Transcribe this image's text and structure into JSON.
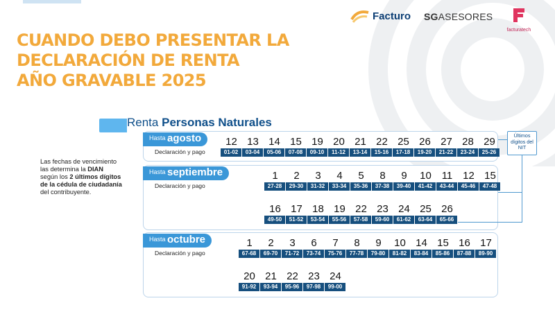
{
  "brand": {
    "facturo": "Facturo",
    "sgs_prefix": "SG",
    "sgs_name": "ASESORES",
    "facturatech": "facturatech"
  },
  "title_lines": [
    "CUANDO DEBO PRESENTAR LA",
    "DECLARACIÓN DE RENTA",
    "AÑO GRAVABLE 2025"
  ],
  "section": {
    "prefix": "Renta",
    "bold": "Personas Naturales"
  },
  "intro": {
    "p1": "Las fechas de vencimiento las determina la",
    "dian": "DIAN",
    "p2": "según los",
    "digits": "2 últimos dígitos de la cédula de ciudadanía",
    "p3": "del contribuyente."
  },
  "nit_note": "Últimos dígitos del NIT",
  "colors": {
    "title": "#f2a93b",
    "tag": "#3a97d8",
    "code_bg": "#164f7e",
    "heading": "#0f4f8a"
  },
  "months": [
    {
      "hasta": "Hasta",
      "name": "agosto",
      "decl": "Declaración y pago",
      "rows": [
        [
          {
            "d": "12",
            "n": "01-02"
          },
          {
            "d": "13",
            "n": "03-04"
          },
          {
            "d": "14",
            "n": "05-06"
          },
          {
            "d": "15",
            "n": "07-08"
          },
          {
            "d": "19",
            "n": "09-10"
          },
          {
            "d": "20",
            "n": "11-12"
          },
          {
            "d": "21",
            "n": "13-14"
          },
          {
            "d": "22",
            "n": "15-16"
          },
          {
            "d": "25",
            "n": "17-18"
          },
          {
            "d": "26",
            "n": "19-20"
          },
          {
            "d": "27",
            "n": "21-22"
          },
          {
            "d": "28",
            "n": "23-24"
          },
          {
            "d": "29",
            "n": "25-26"
          }
        ]
      ]
    },
    {
      "hasta": "Hasta",
      "name": "septiembre",
      "decl": "Declaración y pago",
      "rows": [
        [
          {
            "d": "1",
            "n": "27-28"
          },
          {
            "d": "2",
            "n": "29-30"
          },
          {
            "d": "3",
            "n": "31-32"
          },
          {
            "d": "4",
            "n": "33-34"
          },
          {
            "d": "5",
            "n": "35-36"
          },
          {
            "d": "8",
            "n": "37-38"
          },
          {
            "d": "9",
            "n": "39-40"
          },
          {
            "d": "10",
            "n": "41-42"
          },
          {
            "d": "11",
            "n": "43-44"
          },
          {
            "d": "12",
            "n": "45-46"
          },
          {
            "d": "15",
            "n": "47-48"
          }
        ],
        [
          {
            "d": "16",
            "n": "49-50"
          },
          {
            "d": "17",
            "n": "51-52"
          },
          {
            "d": "18",
            "n": "53-54"
          },
          {
            "d": "19",
            "n": "55-56"
          },
          {
            "d": "22",
            "n": "57-58"
          },
          {
            "d": "23",
            "n": "59-60"
          },
          {
            "d": "24",
            "n": "61-62"
          },
          {
            "d": "25",
            "n": "63-64"
          },
          {
            "d": "26",
            "n": "65-66"
          }
        ]
      ]
    },
    {
      "hasta": "Hasta",
      "name": "octubre",
      "decl": "Declaración y pago",
      "rows": [
        [
          {
            "d": "1",
            "n": "67-68"
          },
          {
            "d": "2",
            "n": "69-70"
          },
          {
            "d": "3",
            "n": "71-72"
          },
          {
            "d": "6",
            "n": "73-74"
          },
          {
            "d": "7",
            "n": "75-76"
          },
          {
            "d": "8",
            "n": "77-78"
          },
          {
            "d": "9",
            "n": "79-80"
          },
          {
            "d": "10",
            "n": "81-82"
          },
          {
            "d": "14",
            "n": "83-84"
          },
          {
            "d": "15",
            "n": "85-86"
          },
          {
            "d": "16",
            "n": "87-88"
          },
          {
            "d": "17",
            "n": "89-90"
          }
        ],
        [
          {
            "d": "20",
            "n": "91-92"
          },
          {
            "d": "21",
            "n": "93-94"
          },
          {
            "d": "22",
            "n": "95-96"
          },
          {
            "d": "23",
            "n": "97-98"
          },
          {
            "d": "24",
            "n": "99-00"
          }
        ]
      ]
    }
  ]
}
